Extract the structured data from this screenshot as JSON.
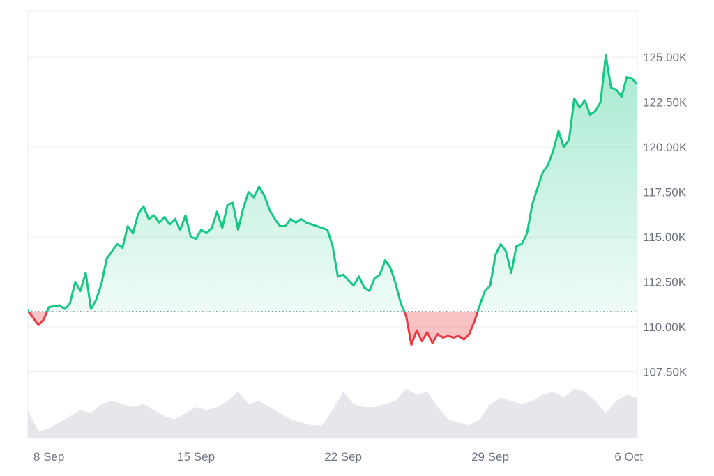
{
  "chart_data": {
    "type": "area",
    "title": "",
    "xlabel": "",
    "ylabel": "",
    "y_unit_suffix": "K",
    "ylim": [
      105500,
      127500
    ],
    "y_ticks": [
      107500,
      110000,
      112500,
      115000,
      117500,
      120000,
      122500,
      125000
    ],
    "y_tick_labels": [
      "107.50K",
      "110.00K",
      "112.50K",
      "115.00K",
      "117.50K",
      "120.00K",
      "122.50K",
      "125.00K"
    ],
    "x_ticks": [
      "8 Sep",
      "15 Sep",
      "22 Sep",
      "29 Sep",
      "6 Oct"
    ],
    "x_tick_dates": [
      "2025-09-08",
      "2025-09-15",
      "2025-09-22",
      "2025-09-29",
      "2025-10-06"
    ],
    "xlim": [
      "2025-09-07T00:00",
      "2025-10-06T00:00"
    ],
    "baseline": 110850,
    "baseline_style": "dotted",
    "grid": true,
    "colors": {
      "up_line": "#16c784",
      "down_line": "#ea3943",
      "up_fill": "#16c784",
      "down_fill": "#ea3943",
      "volume": "#e5e7eb",
      "grid": "#eeeeee",
      "axis_text": "#6b7280"
    },
    "series": [
      {
        "points": [
          [
            "2025-09-07T00:00",
            110900
          ],
          [
            "2025-09-07T12:00",
            110100
          ],
          [
            "2025-09-07T18:00",
            110400
          ],
          [
            "2025-09-08T00:00",
            111100
          ],
          [
            "2025-09-08T12:00",
            111200
          ],
          [
            "2025-09-08T18:00",
            111000
          ],
          [
            "2025-09-09T00:00",
            111300
          ],
          [
            "2025-09-09T06:00",
            112500
          ],
          [
            "2025-09-09T12:00",
            112000
          ],
          [
            "2025-09-09T18:00",
            113000
          ],
          [
            "2025-09-10T00:00",
            111000
          ],
          [
            "2025-09-10T06:00",
            111500
          ],
          [
            "2025-09-10T12:00",
            112400
          ],
          [
            "2025-09-10T18:00",
            113800
          ],
          [
            "2025-09-11T00:00",
            114200
          ],
          [
            "2025-09-11T06:00",
            114600
          ],
          [
            "2025-09-11T12:00",
            114400
          ],
          [
            "2025-09-11T18:00",
            115600
          ],
          [
            "2025-09-12T00:00",
            115200
          ],
          [
            "2025-09-12T06:00",
            116300
          ],
          [
            "2025-09-12T12:00",
            116700
          ],
          [
            "2025-09-12T18:00",
            116000
          ],
          [
            "2025-09-13T00:00",
            116200
          ],
          [
            "2025-09-13T06:00",
            115800
          ],
          [
            "2025-09-13T12:00",
            116100
          ],
          [
            "2025-09-13T18:00",
            115700
          ],
          [
            "2025-09-14T00:00",
            116000
          ],
          [
            "2025-09-14T06:00",
            115400
          ],
          [
            "2025-09-14T12:00",
            116200
          ],
          [
            "2025-09-14T18:00",
            115000
          ],
          [
            "2025-09-15T00:00",
            114900
          ],
          [
            "2025-09-15T06:00",
            115400
          ],
          [
            "2025-09-15T12:00",
            115200
          ],
          [
            "2025-09-15T18:00",
            115500
          ],
          [
            "2025-09-16T00:00",
            116400
          ],
          [
            "2025-09-16T06:00",
            115500
          ],
          [
            "2025-09-16T12:00",
            116800
          ],
          [
            "2025-09-16T18:00",
            116900
          ],
          [
            "2025-09-17T00:00",
            115400
          ],
          [
            "2025-09-17T06:00",
            116600
          ],
          [
            "2025-09-17T12:00",
            117500
          ],
          [
            "2025-09-17T18:00",
            117200
          ],
          [
            "2025-09-18T00:00",
            117800
          ],
          [
            "2025-09-18T06:00",
            117300
          ],
          [
            "2025-09-18T12:00",
            116500
          ],
          [
            "2025-09-18T18:00",
            116000
          ],
          [
            "2025-09-19T00:00",
            115600
          ],
          [
            "2025-09-19T06:00",
            115600
          ],
          [
            "2025-09-19T12:00",
            116000
          ],
          [
            "2025-09-19T18:00",
            115800
          ],
          [
            "2025-09-20T00:00",
            116000
          ],
          [
            "2025-09-20T06:00",
            115800
          ],
          [
            "2025-09-20T12:00",
            115700
          ],
          [
            "2025-09-20T18:00",
            115600
          ],
          [
            "2025-09-21T00:00",
            115500
          ],
          [
            "2025-09-21T06:00",
            115400
          ],
          [
            "2025-09-21T12:00",
            114500
          ],
          [
            "2025-09-21T18:00",
            112800
          ],
          [
            "2025-09-22T00:00",
            112900
          ],
          [
            "2025-09-22T06:00",
            112600
          ],
          [
            "2025-09-22T12:00",
            112300
          ],
          [
            "2025-09-22T18:00",
            112800
          ],
          [
            "2025-09-23T00:00",
            112200
          ],
          [
            "2025-09-23T06:00",
            112000
          ],
          [
            "2025-09-23T12:00",
            112700
          ],
          [
            "2025-09-23T18:00",
            112900
          ],
          [
            "2025-09-24T00:00",
            113700
          ],
          [
            "2025-09-24T06:00",
            113300
          ],
          [
            "2025-09-24T12:00",
            112400
          ],
          [
            "2025-09-24T18:00",
            111300
          ],
          [
            "2025-09-25T00:00",
            110600
          ],
          [
            "2025-09-25T06:00",
            109000
          ],
          [
            "2025-09-25T12:00",
            109800
          ],
          [
            "2025-09-25T18:00",
            109200
          ],
          [
            "2025-09-26T00:00",
            109700
          ],
          [
            "2025-09-26T06:00",
            109100
          ],
          [
            "2025-09-26T12:00",
            109600
          ],
          [
            "2025-09-26T18:00",
            109400
          ],
          [
            "2025-09-27T00:00",
            109500
          ],
          [
            "2025-09-27T06:00",
            109400
          ],
          [
            "2025-09-27T12:00",
            109500
          ],
          [
            "2025-09-27T18:00",
            109300
          ],
          [
            "2025-09-28T00:00",
            109600
          ],
          [
            "2025-09-28T06:00",
            110300
          ],
          [
            "2025-09-28T12:00",
            111200
          ],
          [
            "2025-09-28T18:00",
            112000
          ],
          [
            "2025-09-29T00:00",
            112300
          ],
          [
            "2025-09-29T06:00",
            114000
          ],
          [
            "2025-09-29T12:00",
            114600
          ],
          [
            "2025-09-29T18:00",
            114200
          ],
          [
            "2025-09-30T00:00",
            113000
          ],
          [
            "2025-09-30T06:00",
            114500
          ],
          [
            "2025-09-30T12:00",
            114600
          ],
          [
            "2025-09-30T18:00",
            115200
          ],
          [
            "2025-10-01T00:00",
            116800
          ],
          [
            "2025-10-01T06:00",
            117700
          ],
          [
            "2025-10-01T12:00",
            118600
          ],
          [
            "2025-10-01T18:00",
            119000
          ],
          [
            "2025-10-02T00:00",
            119800
          ],
          [
            "2025-10-02T06:00",
            120900
          ],
          [
            "2025-10-02T12:00",
            120000
          ],
          [
            "2025-10-02T18:00",
            120400
          ],
          [
            "2025-10-03T00:00",
            122700
          ],
          [
            "2025-10-03T06:00",
            122200
          ],
          [
            "2025-10-03T12:00",
            122600
          ],
          [
            "2025-10-03T18:00",
            121800
          ],
          [
            "2025-10-04T00:00",
            122000
          ],
          [
            "2025-10-04T06:00",
            122500
          ],
          [
            "2025-10-04T12:00",
            125100
          ],
          [
            "2025-10-04T18:00",
            123300
          ],
          [
            "2025-10-05T00:00",
            123200
          ],
          [
            "2025-10-05T06:00",
            122800
          ],
          [
            "2025-10-05T12:00",
            123900
          ],
          [
            "2025-10-05T18:00",
            123800
          ],
          [
            "2025-10-06T00:00",
            123500
          ]
        ]
      }
    ],
    "volume": [
      [
        "2025-09-07T00:00",
        0.45
      ],
      [
        "2025-09-07T12:00",
        0.1
      ],
      [
        "2025-09-08T00:00",
        0.15
      ],
      [
        "2025-09-08T12:00",
        0.25
      ],
      [
        "2025-09-09T00:00",
        0.35
      ],
      [
        "2025-09-09T12:00",
        0.45
      ],
      [
        "2025-09-10T00:00",
        0.4
      ],
      [
        "2025-09-10T12:00",
        0.55
      ],
      [
        "2025-09-11T00:00",
        0.6
      ],
      [
        "2025-09-11T12:00",
        0.55
      ],
      [
        "2025-09-12T00:00",
        0.5
      ],
      [
        "2025-09-12T12:00",
        0.55
      ],
      [
        "2025-09-13T00:00",
        0.45
      ],
      [
        "2025-09-13T12:00",
        0.35
      ],
      [
        "2025-09-14T00:00",
        0.3
      ],
      [
        "2025-09-14T12:00",
        0.4
      ],
      [
        "2025-09-15T00:00",
        0.5
      ],
      [
        "2025-09-15T12:00",
        0.45
      ],
      [
        "2025-09-16T00:00",
        0.5
      ],
      [
        "2025-09-16T12:00",
        0.6
      ],
      [
        "2025-09-17T00:00",
        0.75
      ],
      [
        "2025-09-17T12:00",
        0.55
      ],
      [
        "2025-09-18T00:00",
        0.6
      ],
      [
        "2025-09-18T12:00",
        0.5
      ],
      [
        "2025-09-19T00:00",
        0.4
      ],
      [
        "2025-09-19T12:00",
        0.3
      ],
      [
        "2025-09-20T00:00",
        0.25
      ],
      [
        "2025-09-20T12:00",
        0.2
      ],
      [
        "2025-09-21T00:00",
        0.2
      ],
      [
        "2025-09-21T12:00",
        0.45
      ],
      [
        "2025-09-22T00:00",
        0.75
      ],
      [
        "2025-09-22T12:00",
        0.55
      ],
      [
        "2025-09-23T00:00",
        0.5
      ],
      [
        "2025-09-23T12:00",
        0.5
      ],
      [
        "2025-09-24T00:00",
        0.55
      ],
      [
        "2025-09-24T12:00",
        0.6
      ],
      [
        "2025-09-25T00:00",
        0.8
      ],
      [
        "2025-09-25T12:00",
        0.7
      ],
      [
        "2025-09-26T00:00",
        0.75
      ],
      [
        "2025-09-26T12:00",
        0.5
      ],
      [
        "2025-09-27T00:00",
        0.3
      ],
      [
        "2025-09-27T12:00",
        0.25
      ],
      [
        "2025-09-28T00:00",
        0.2
      ],
      [
        "2025-09-28T12:00",
        0.3
      ],
      [
        "2025-09-29T00:00",
        0.55
      ],
      [
        "2025-09-29T12:00",
        0.65
      ],
      [
        "2025-09-30T00:00",
        0.6
      ],
      [
        "2025-09-30T12:00",
        0.55
      ],
      [
        "2025-10-01T00:00",
        0.6
      ],
      [
        "2025-10-01T12:00",
        0.7
      ],
      [
        "2025-10-02T00:00",
        0.75
      ],
      [
        "2025-10-02T12:00",
        0.65
      ],
      [
        "2025-10-03T00:00",
        0.8
      ],
      [
        "2025-10-03T12:00",
        0.75
      ],
      [
        "2025-10-04T00:00",
        0.6
      ],
      [
        "2025-10-04T12:00",
        0.4
      ],
      [
        "2025-10-05T00:00",
        0.6
      ],
      [
        "2025-10-05T12:00",
        0.7
      ],
      [
        "2025-10-06T00:00",
        0.65
      ]
    ]
  }
}
